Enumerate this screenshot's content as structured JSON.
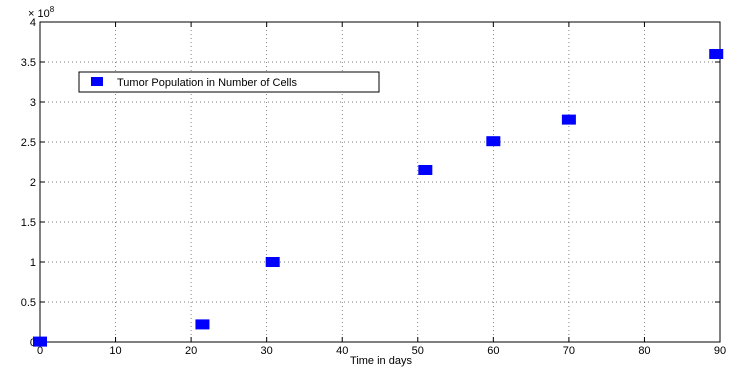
{
  "chart_data": {
    "type": "scatter",
    "title": "",
    "xlabel": "Time in days",
    "ylabel": "",
    "y_multiplier_label": "× 10",
    "y_multiplier_exponent": "8",
    "xlim": [
      0,
      90
    ],
    "ylim": [
      0,
      4
    ],
    "xticks": [
      0,
      10,
      20,
      30,
      40,
      50,
      60,
      70,
      80,
      90
    ],
    "yticks": [
      0,
      0.5,
      1,
      1.5,
      2,
      2.5,
      3,
      3.5,
      4
    ],
    "ytick_labels": [
      "0",
      "0.5",
      "1",
      "1.5",
      "2",
      "2.5",
      "3",
      "3.5",
      "4"
    ],
    "grid": true,
    "legend_position": "upper-left",
    "marker": "square",
    "marker_color": "#0000ff",
    "series": [
      {
        "name": "Tumor Population in Number of Cells",
        "x": [
          0,
          21.5,
          30.8,
          51,
          60,
          70,
          89.5
        ],
        "y": [
          0.005,
          0.22,
          1.0,
          2.15,
          2.51,
          2.78,
          3.6
        ]
      }
    ]
  }
}
